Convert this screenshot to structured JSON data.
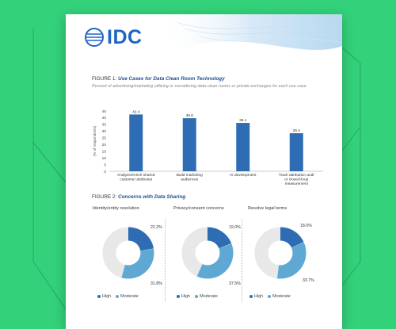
{
  "logo": {
    "text": "IDC"
  },
  "figure1": {
    "label": "FIGURE 1:",
    "title": "Use Cases for Data Clean Room Technology",
    "subtitle": "Percent of advertising/marketing utilizing or considering data clean rooms or private exchanges for each use case"
  },
  "figure2": {
    "label": "FIGURE 2:",
    "title": "Concerns with Data Sharing"
  },
  "colors": {
    "background": "#33d17a",
    "dark_blue": "#2e6db3",
    "light_blue": "#5fa8d3",
    "donut_track": "#e8e8e8"
  },
  "legend": {
    "high": "High",
    "moderate": "Moderate"
  },
  "chart_data": [
    {
      "type": "bar",
      "title": "Use Cases for Data Clean Room Technology",
      "ylabel": "(% of respondents)",
      "ylim": [
        0,
        45
      ],
      "yticks": [
        0,
        5,
        10,
        15,
        20,
        25,
        30,
        35,
        40,
        45
      ],
      "categories": [
        [
          "Analyze/enrich shared",
          "customer attributes"
        ],
        [
          "Build marketing",
          "audiences"
        ],
        [
          "AI development"
        ],
        [
          "Track attribution and/",
          "or closed-loop",
          "measurement"
        ]
      ],
      "values": [
        42.4,
        39.6,
        36.1,
        28.4
      ],
      "value_labels": [
        "42.4",
        "39.6",
        "36.1",
        "28.4"
      ]
    },
    {
      "type": "pie",
      "title": "Identity/entity resolution",
      "series": [
        {
          "name": "High",
          "value": 22.2,
          "label": "22.2%"
        },
        {
          "name": "Moderate",
          "value": 31.8,
          "label": "31.8%"
        }
      ]
    },
    {
      "type": "pie",
      "title": "Privacy/consent concerns",
      "series": [
        {
          "name": "High",
          "value": 19.0,
          "label": "19.0%"
        },
        {
          "name": "Moderate",
          "value": 37.5,
          "label": "37.5%"
        }
      ]
    },
    {
      "type": "pie",
      "title": "Resolve legal terms",
      "series": [
        {
          "name": "High",
          "value": 18.0,
          "label": "18.0%"
        },
        {
          "name": "Moderate",
          "value": 33.7,
          "label": "33.7%"
        }
      ]
    }
  ]
}
